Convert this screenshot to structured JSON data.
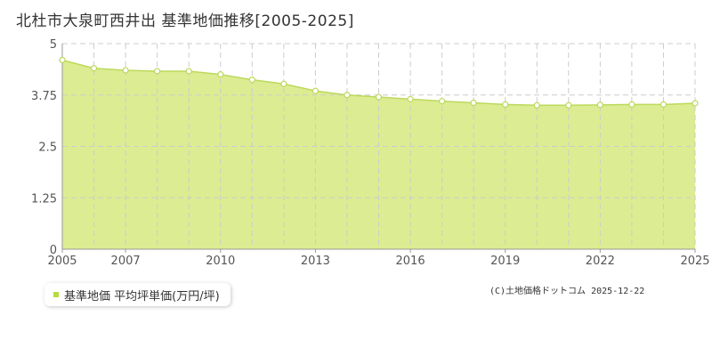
{
  "colors": {
    "fill": "#dcec92",
    "line": "#bcd95c",
    "marker_fill": "#ffffff",
    "grid": "#cccccc",
    "text": "#333333",
    "legend_swatch": "#b5dd3b"
  },
  "legend": {
    "label": "基準地価 平均坪単価(万円/坪)"
  },
  "copyright": "(C)土地価格ドットコム 2025-12-22",
  "chart_data": {
    "type": "area",
    "title": "北杜市大泉町西井出 基準地価推移[2005-2025]",
    "xlabel": "",
    "ylabel": "",
    "x": [
      2005,
      2006,
      2007,
      2008,
      2009,
      2010,
      2011,
      2012,
      2013,
      2014,
      2015,
      2016,
      2017,
      2018,
      2019,
      2020,
      2021,
      2022,
      2023,
      2024,
      2025
    ],
    "series": [
      {
        "name": "基準地価 平均坪単価(万円/坪)",
        "values": [
          4.6,
          4.4,
          4.35,
          4.33,
          4.33,
          4.25,
          4.12,
          4.02,
          3.85,
          3.75,
          3.7,
          3.65,
          3.6,
          3.56,
          3.52,
          3.5,
          3.5,
          3.51,
          3.52,
          3.52,
          3.55
        ]
      }
    ],
    "xlim": [
      2005,
      2025
    ],
    "ylim": [
      0,
      5
    ],
    "yticks": [
      "0",
      "1.25",
      "2.5",
      "3.75",
      "5"
    ],
    "xticks": [
      "2005",
      "2007",
      "2010",
      "2013",
      "2016",
      "2019",
      "2022",
      "2025"
    ],
    "grid": true,
    "legend_position": "bottom-left"
  }
}
